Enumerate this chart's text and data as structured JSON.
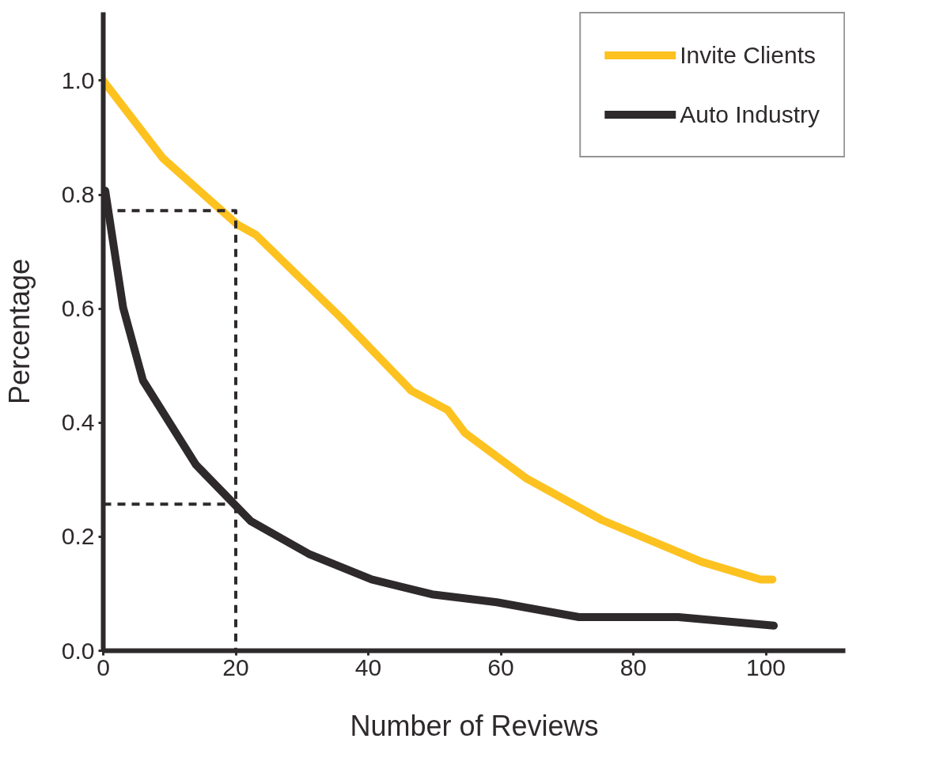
{
  "chart_data": {
    "type": "line",
    "xlabel": "Number of Reviews",
    "ylabel": "Percentage",
    "xlim": [
      0,
      112
    ],
    "ylim": [
      0,
      1.12
    ],
    "xticks": [
      0,
      20,
      40,
      60,
      80,
      100
    ],
    "yticks": [
      {
        "value": 0,
        "label": "0.0"
      },
      0.2,
      0.4,
      0.6,
      0.8,
      {
        "value": 1,
        "label": "1.0"
      }
    ],
    "grid": false,
    "legend": "top right",
    "line_style": "solid",
    "series": [
      {
        "name": "Invite Clients",
        "color": "#fdc220",
        "x": [
          0,
          9,
          20.2,
          23,
          35.8,
          46.5,
          52,
          54.6,
          63.9,
          75.3,
          90.3,
          99.2,
          101
        ],
        "values": [
          1.0,
          0.864,
          0.748,
          0.73,
          0.585,
          0.456,
          0.422,
          0.382,
          0.302,
          0.229,
          0.156,
          0.125,
          0.125
        ]
      },
      {
        "name": "Auto Industry",
        "color": "#2e2a2b",
        "x": [
          0.3,
          3,
          6,
          14,
          22.3,
          31,
          40.5,
          49.6,
          59.4,
          71.8,
          86.8,
          101.2
        ],
        "values": [
          0.807,
          0.602,
          0.474,
          0.326,
          0.227,
          0.17,
          0.125,
          0.099,
          0.085,
          0.059,
          0.059,
          0.044
        ]
      },
      {
        "color": "#2e2a2b",
        "line_style": "dashed",
        "x": [
          0,
          20,
          20
        ],
        "values": [
          0.772,
          0.772,
          0
        ]
      },
      {
        "color": "#2e2a2b",
        "line_style": "dashed",
        "x": [
          0,
          20
        ],
        "values": [
          0.257,
          0.257
        ]
      }
    ]
  }
}
